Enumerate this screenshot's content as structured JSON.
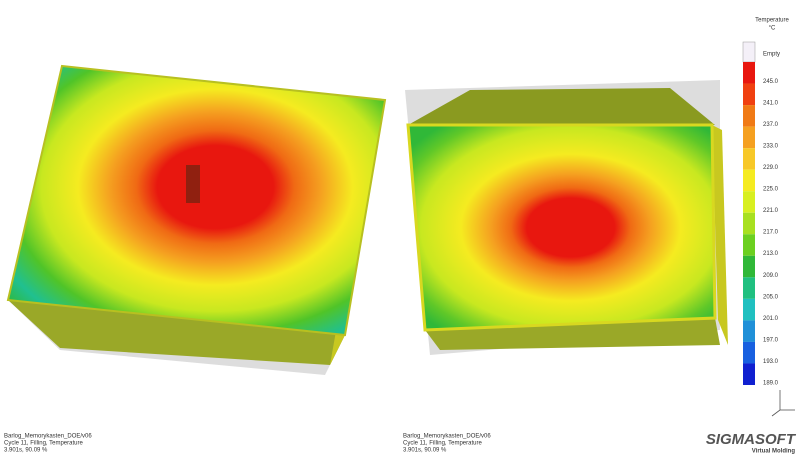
{
  "legend": {
    "title": "Temperature",
    "unit": "°C",
    "empty": "Empty",
    "labels": [
      "245.0",
      "241.0",
      "237.0",
      "233.0",
      "229.0",
      "225.0",
      "221.0",
      "217.0",
      "213.0",
      "209.0",
      "205.0",
      "201.0",
      "197.0",
      "193.0",
      "189.0"
    ]
  },
  "left_caption": [
    "Barlog_Memorykasten_DOE/v06",
    "Cycle 11, Filling, Temperature",
    "3.901s, 90.09 %"
  ],
  "right_caption": [
    "Barlog_Memorykasten_DOE/v06",
    "Cycle 11, Filling, Temperature",
    "3.901s, 90.09 %"
  ],
  "logo": {
    "name": "SIGMASOFT",
    "tagline": "Virtual Molding"
  }
}
